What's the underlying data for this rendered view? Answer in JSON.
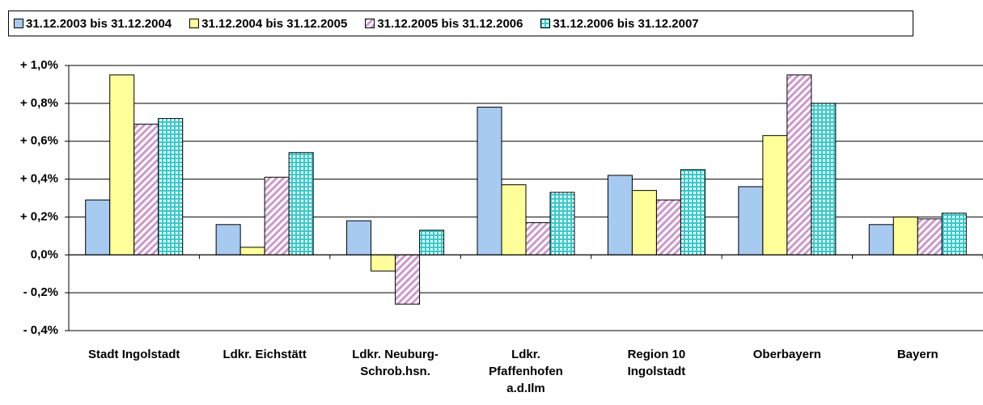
{
  "chart_data": {
    "type": "bar",
    "categories": [
      "Stadt Ingolstadt",
      "Ldkr. Eichstätt",
      "Ldkr. Neuburg-\nSchrob.hsn.",
      "Ldkr.\nPfaffenhofen\na.d.Ilm",
      "Region 10\nIngolstadt",
      "Oberbayern",
      "Bayern"
    ],
    "series": [
      {
        "name": "31.12.2003 bis 31.12.2004",
        "color": "#a6caf0",
        "values": [
          0.29,
          0.16,
          0.18,
          0.78,
          0.42,
          0.36,
          0.16
        ]
      },
      {
        "name": "31.12.2004 bis 31.12.2005",
        "color": "#ffff99",
        "values": [
          0.95,
          0.04,
          -0.085,
          0.37,
          0.34,
          0.63,
          0.2
        ]
      },
      {
        "name": "31.12.2005 bis 31.12.2006",
        "color": "#cc99cc",
        "pattern": "diagonal",
        "values": [
          0.69,
          0.41,
          -0.26,
          0.17,
          0.29,
          0.95,
          0.19
        ]
      },
      {
        "name": "31.12.2006 bis 31.12.2007",
        "color": "#33cccc",
        "pattern": "grid",
        "values": [
          0.72,
          0.54,
          0.13,
          0.33,
          0.45,
          0.8,
          0.22
        ]
      }
    ],
    "ylim": [
      -0.4,
      1.0
    ],
    "yticks": [
      {
        "value": -0.4,
        "label": "- 0,4%"
      },
      {
        "value": -0.2,
        "label": "- 0,2%"
      },
      {
        "value": 0,
        "label": "0,0%"
      },
      {
        "value": 0.2,
        "label": "+ 0,2%"
      },
      {
        "value": 0.4,
        "label": "+ 0,4%"
      },
      {
        "value": 0.6,
        "label": "+ 0,6%"
      },
      {
        "value": 0.8,
        "label": "+ 0,8%"
      },
      {
        "value": 1.0,
        "label": "+ 1,0%"
      }
    ],
    "grid": true,
    "legend": "top"
  }
}
